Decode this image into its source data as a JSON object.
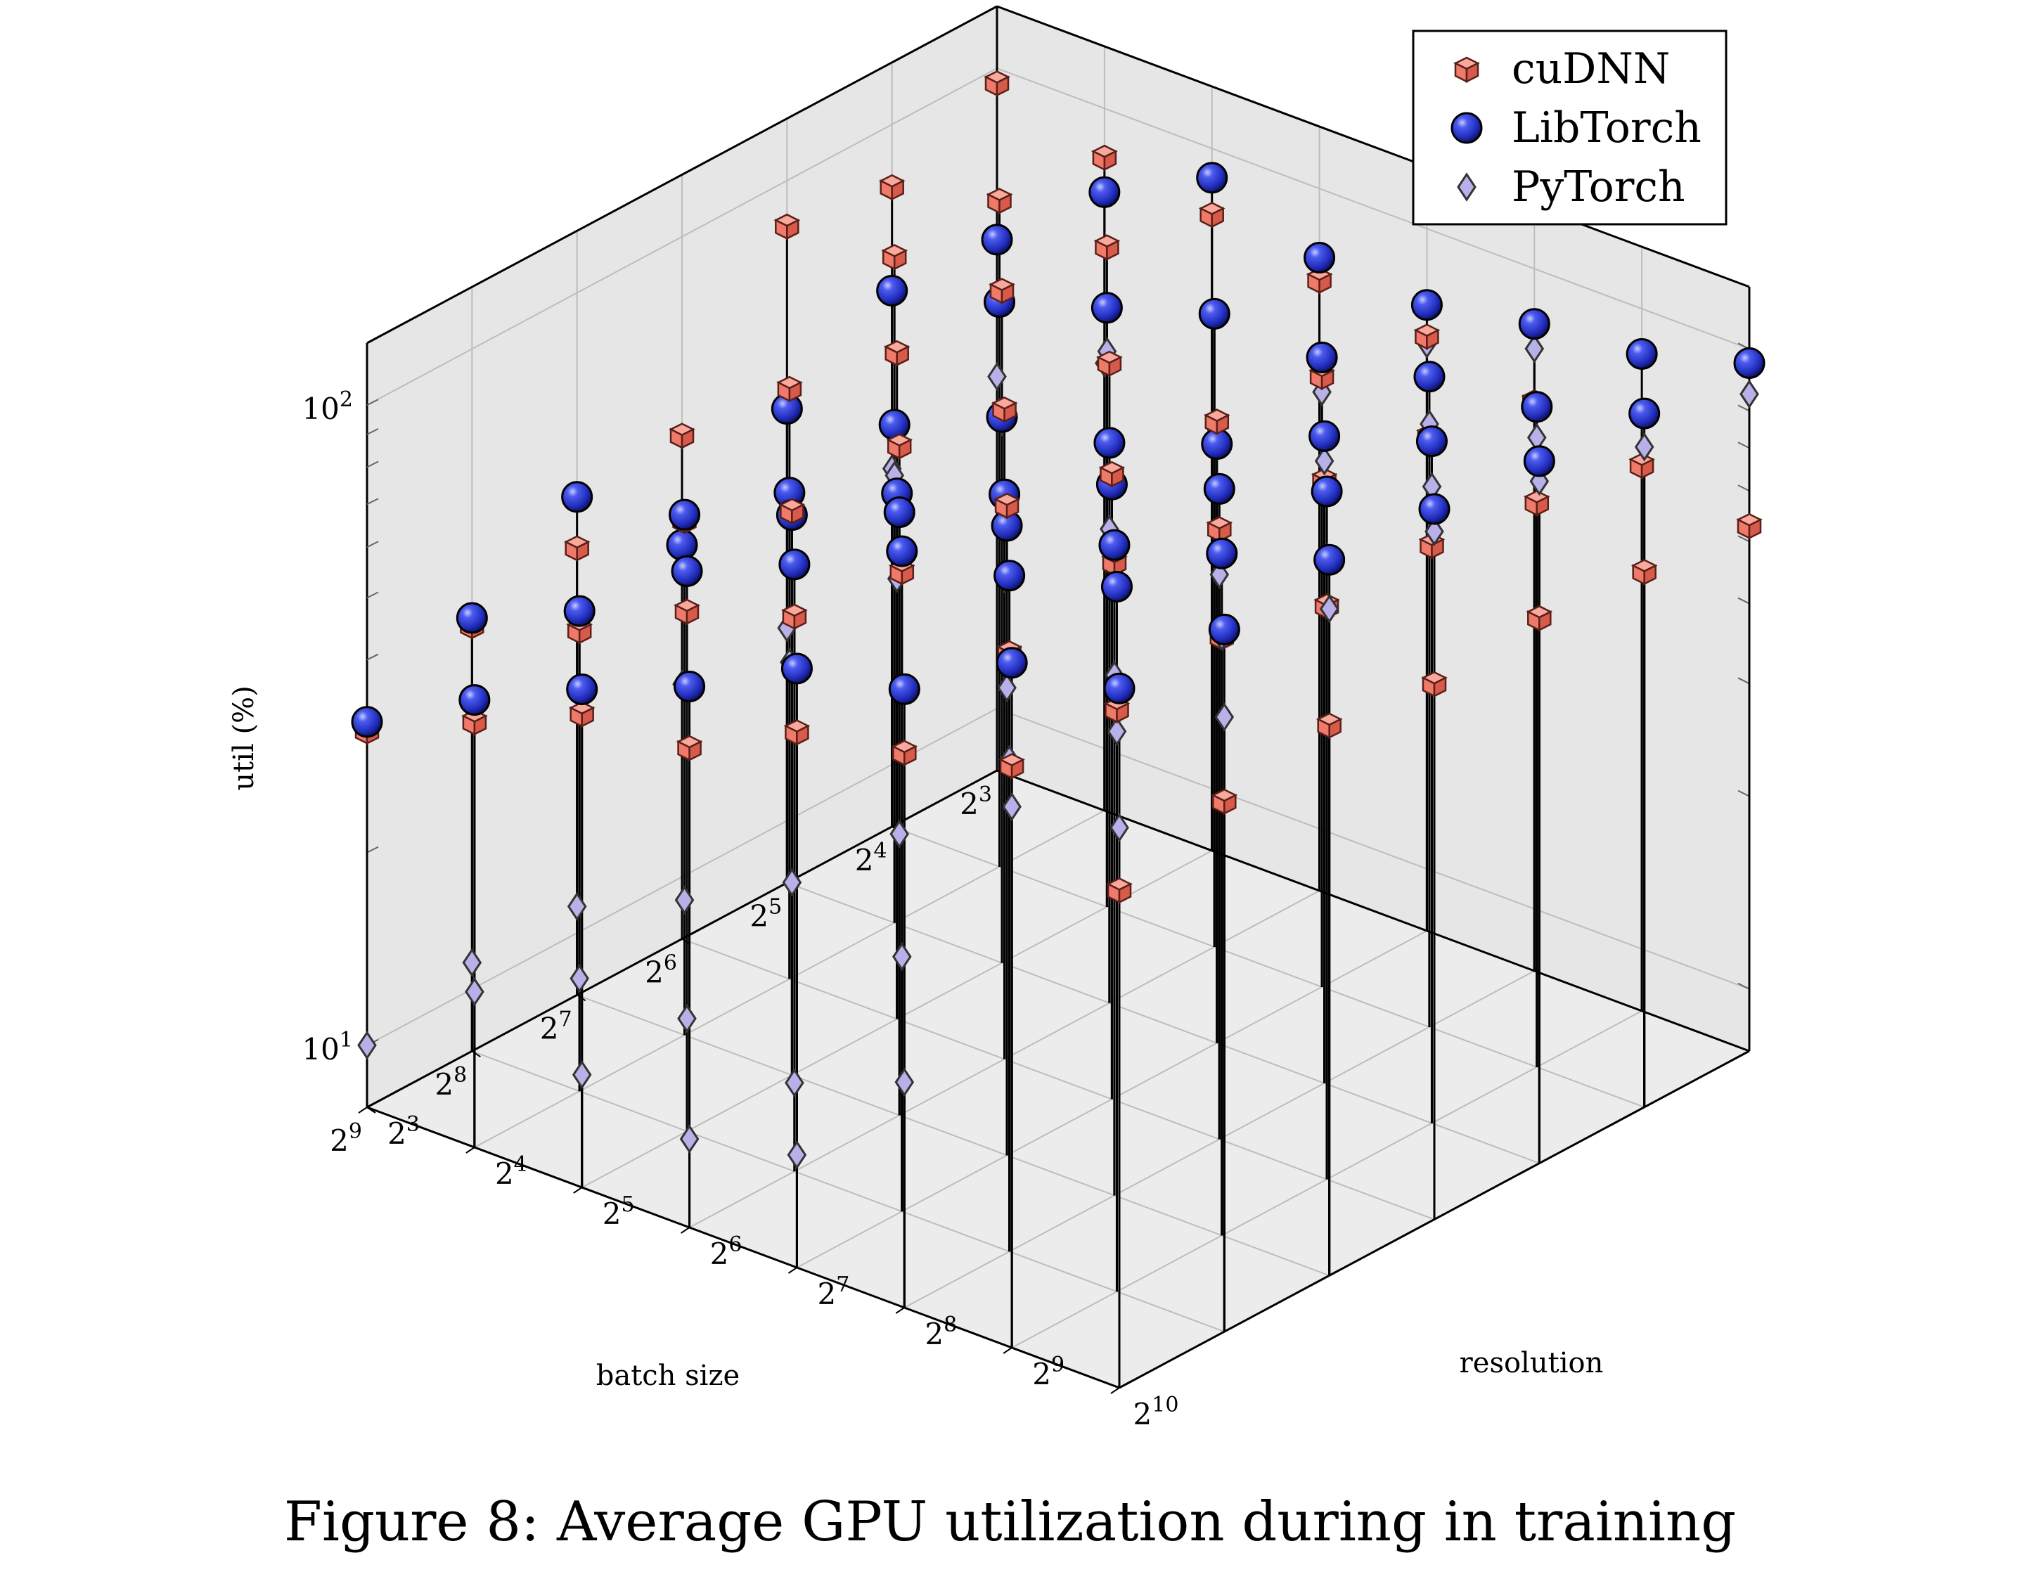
{
  "caption": "Figure 8: Average GPU utilization during in training",
  "chart_data": {
    "type": "scatter3d-stem",
    "xlabel": "batch size",
    "ylabel": "resolution",
    "zlabel": "util (%)",
    "x_ticks": [
      3,
      4,
      5,
      6,
      7,
      8,
      9
    ],
    "y_ticks": [
      3,
      4,
      5,
      6,
      7,
      8,
      9,
      10
    ],
    "z_ticks": [
      1,
      2
    ],
    "x_scale": "log2",
    "y_scale": "log2",
    "z_scale": "log10",
    "x_range_log2": [
      3,
      9
    ],
    "y_range_log2": [
      3,
      10
    ],
    "zlim": [
      8,
      125
    ],
    "grid": true,
    "legend_position": "top-right",
    "series": [
      {
        "name": "cuDNN",
        "marker": "cube",
        "color": "#f07a6a",
        "points": [
          [
            3,
            3,
            95
          ],
          [
            3,
            4,
            84
          ],
          [
            3,
            5,
            79
          ],
          [
            3,
            6,
            72
          ],
          [
            3,
            7,
            68
          ],
          [
            3,
            8,
            62
          ],
          [
            3,
            9,
            57
          ],
          [
            3,
            10,
            53
          ],
          [
            4,
            3,
            80
          ],
          [
            4,
            4,
            88
          ],
          [
            4,
            5,
            86
          ],
          [
            4,
            6,
            78
          ],
          [
            4,
            7,
            72
          ],
          [
            4,
            8,
            67
          ],
          [
            4,
            9,
            61
          ],
          [
            4,
            10,
            55
          ],
          [
            5,
            3,
            85
          ],
          [
            5,
            4,
            88
          ],
          [
            5,
            5,
            90
          ],
          [
            5,
            6,
            80
          ],
          [
            5,
            7,
            75
          ],
          [
            5,
            8,
            70
          ],
          [
            5,
            9,
            64
          ],
          [
            5,
            10,
            57
          ],
          [
            6,
            3,
            49
          ],
          [
            6,
            4,
            67
          ],
          [
            6,
            5,
            88
          ],
          [
            6,
            6,
            83
          ],
          [
            6,
            7,
            76
          ],
          [
            6,
            8,
            72
          ],
          [
            6,
            9,
            63
          ],
          [
            6,
            10,
            55
          ],
          [
            7,
            3,
            40
          ],
          [
            7,
            4,
            51
          ],
          [
            7,
            5,
            61
          ],
          [
            7,
            6,
            89
          ],
          [
            7,
            7,
            83
          ],
          [
            7,
            8,
            78
          ],
          [
            7,
            9,
            69
          ],
          [
            7,
            10,
            58
          ],
          [
            8,
            3,
            37
          ],
          [
            8,
            4,
            42
          ],
          [
            8,
            5,
            52
          ],
          [
            8,
            6,
            59
          ],
          [
            8,
            7,
            80
          ],
          [
            8,
            8,
            69
          ],
          [
            8,
            9,
            65
          ],
          [
            8,
            10,
            54
          ],
          [
            9,
            3,
            31
          ],
          [
            9,
            4,
            37
          ],
          [
            9,
            5,
            44
          ],
          [
            9,
            6,
            45
          ],
          [
            9,
            7,
            55
          ],
          [
            9,
            8,
            59
          ],
          [
            9,
            9,
            65
          ],
          [
            9,
            10,
            48
          ]
        ]
      },
      {
        "name": "LibTorch",
        "marker": "sphere",
        "color": "#2632c8",
        "points": [
          [
            3,
            3,
            54
          ],
          [
            3,
            4,
            74
          ],
          [
            3,
            5,
            90
          ],
          [
            3,
            6,
            78
          ],
          [
            3,
            7,
            76
          ],
          [
            3,
            8,
            82
          ],
          [
            3,
            9,
            85
          ],
          [
            3,
            10,
            95
          ],
          [
            4,
            3,
            55
          ],
          [
            4,
            4,
            61
          ],
          [
            4,
            5,
            69
          ],
          [
            4,
            6,
            78
          ],
          [
            4,
            7,
            77
          ],
          [
            4,
            8,
            83
          ],
          [
            4,
            9,
            86
          ],
          [
            4,
            10,
            97
          ],
          [
            5,
            3,
            44
          ],
          [
            5,
            4,
            48
          ],
          [
            5,
            5,
            57
          ],
          [
            5,
            6,
            60
          ],
          [
            5,
            7,
            69
          ],
          [
            5,
            8,
            82
          ],
          [
            5,
            9,
            93
          ],
          [
            5,
            10,
            100
          ],
          [
            6,
            3,
            33
          ],
          [
            6,
            4,
            46
          ],
          [
            6,
            5,
            53
          ],
          [
            6,
            6,
            61
          ],
          [
            6,
            7,
            73
          ],
          [
            6,
            8,
            83
          ],
          [
            6,
            9,
            95
          ],
          [
            6,
            10,
            103
          ],
          [
            7,
            3,
            48
          ],
          [
            7,
            4,
            52
          ],
          [
            7,
            5,
            60
          ],
          [
            7,
            6,
            70
          ],
          [
            7,
            7,
            77
          ],
          [
            7,
            8,
            83
          ],
          [
            7,
            9,
            93
          ],
          [
            7,
            10,
            105
          ],
          [
            8,
            3,
            38
          ],
          [
            8,
            4,
            45
          ],
          [
            8,
            5,
            60
          ],
          [
            8,
            6,
            71
          ],
          [
            8,
            7,
            86
          ],
          [
            8,
            8,
            91
          ],
          [
            8,
            9,
            101
          ],
          [
            8,
            10,
            100
          ],
          [
            9,
            3,
            32
          ],
          [
            9,
            4,
            40
          ],
          [
            9,
            5,
            48
          ],
          [
            9,
            6,
            56
          ],
          [
            9,
            7,
            69
          ],
          [
            9,
            8,
            74
          ],
          [
            9,
            9,
            94
          ],
          [
            9,
            10,
            99
          ]
        ]
      },
      {
        "name": "PyTorch",
        "marker": "diamond",
        "color": "#b8b0e8",
        "points": [
          [
            3,
            3,
            33
          ],
          [
            3,
            4,
            40
          ],
          [
            3,
            5,
            55
          ],
          [
            3,
            6,
            53
          ],
          [
            3,
            7,
            66
          ],
          [
            3,
            8,
            75
          ],
          [
            3,
            9,
            69
          ],
          [
            3,
            10,
            85
          ],
          [
            4,
            3,
            29
          ],
          [
            4,
            4,
            41
          ],
          [
            4,
            5,
            59
          ],
          [
            4,
            6,
            52
          ],
          [
            4,
            7,
            68
          ],
          [
            4,
            8,
            70
          ],
          [
            4,
            9,
            77
          ],
          [
            4,
            10,
            86
          ],
          [
            5,
            3,
            20
          ],
          [
            5,
            4,
            40
          ],
          [
            5,
            5,
            56
          ],
          [
            5,
            6,
            44
          ],
          [
            5,
            7,
            59
          ],
          [
            5,
            8,
            75
          ],
          [
            5,
            9,
            79
          ],
          [
            5,
            10,
            93
          ],
          [
            6,
            3,
            20
          ],
          [
            6,
            4,
            25
          ],
          [
            6,
            5,
            39
          ],
          [
            6,
            6,
            45
          ],
          [
            6,
            7,
            59
          ],
          [
            6,
            8,
            61
          ],
          [
            6,
            9,
            75
          ],
          [
            6,
            10,
            95
          ],
          [
            7,
            3,
            11
          ],
          [
            7,
            4,
            13
          ],
          [
            7,
            5,
            16
          ],
          [
            7,
            6,
            22
          ],
          [
            7,
            7,
            43
          ],
          [
            7,
            8,
            52
          ],
          [
            7,
            9,
            69
          ],
          [
            7,
            10,
            88
          ],
          [
            8,
            3,
            11
          ],
          [
            8,
            4,
            12
          ],
          [
            8,
            5,
            12
          ],
          [
            8,
            6,
            11
          ],
          [
            8,
            7,
            20
          ],
          [
            8,
            8,
            47
          ],
          [
            8,
            9,
            60
          ],
          [
            8,
            10,
            73
          ],
          [
            9,
            3,
            10
          ],
          [
            9,
            4,
            14
          ],
          [
            9,
            5,
            12
          ],
          [
            9,
            6,
            11
          ],
          [
            9,
            7,
            12
          ],
          [
            9,
            8,
            18
          ],
          [
            9,
            9,
            56
          ],
          [
            9,
            10,
            60
          ]
        ]
      }
    ]
  }
}
